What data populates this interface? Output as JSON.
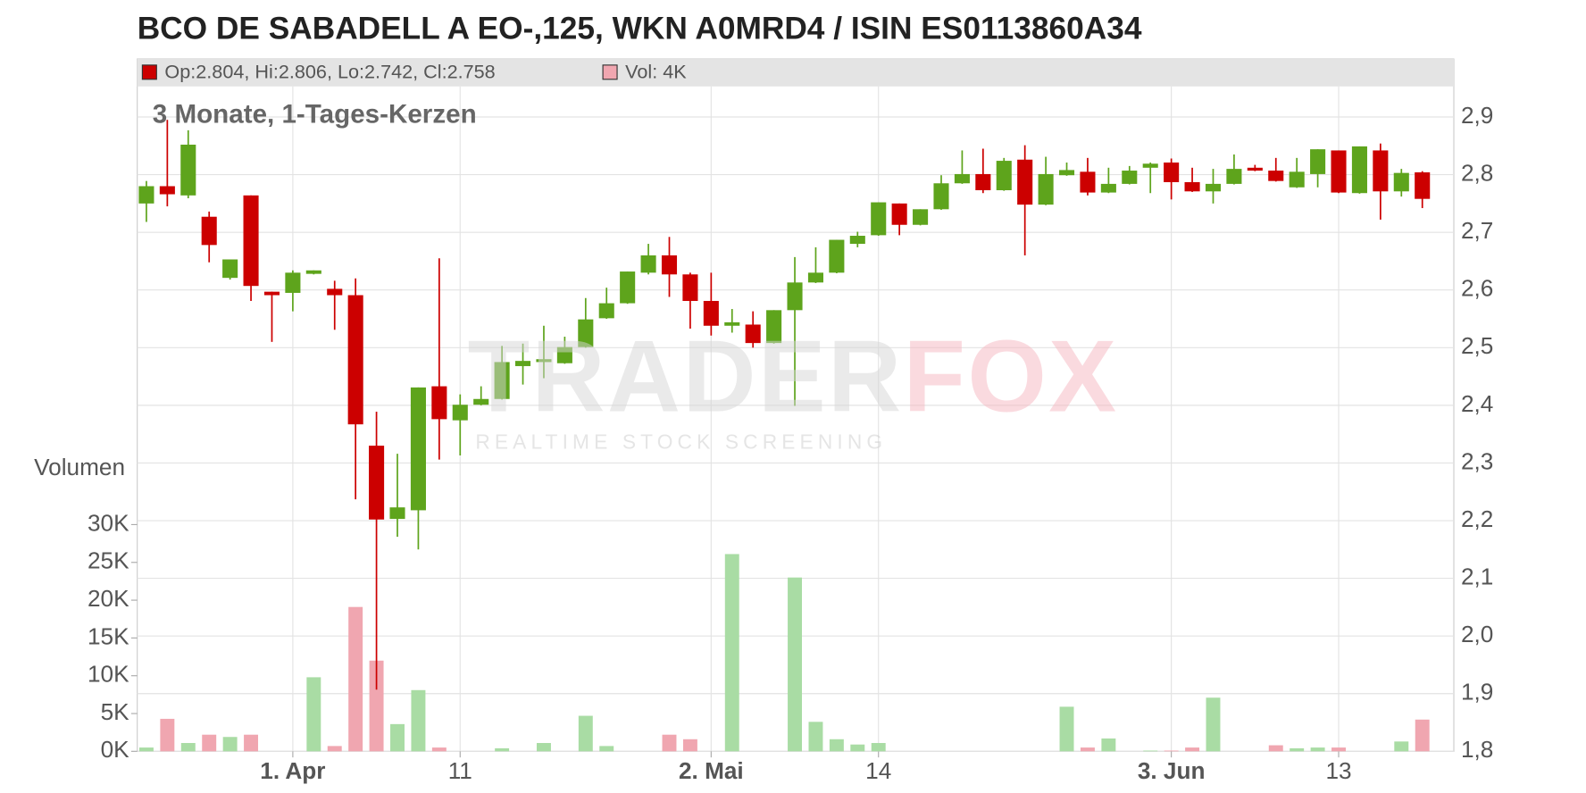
{
  "chart_data": {
    "type": "candlestick",
    "title": "BCO DE SABADELL A EO-,125, WKN A0MRD4 / ISIN ES0113860A34",
    "subtitle": "3 Monate, 1-Tages-Kerzen",
    "legend": {
      "price": "Op:2.804, Hi:2.806, Lo:2.742, Cl:2.758",
      "volume": "Vol: 4K"
    },
    "volume_axis_label": "Volumen",
    "watermark": {
      "left": "TRADER",
      "right": "FOX",
      "tagline": "REALTIME STOCK SCREENING"
    },
    "up_color": "#5ea41c",
    "down_color": "#cc0000",
    "volume_up_color": "#a9dca4",
    "volume_down_color": "#f0a6b0",
    "categories": [
      null,
      null,
      null,
      null,
      null,
      null,
      null,
      "1. Apr",
      null,
      null,
      null,
      null,
      null,
      null,
      null,
      "11",
      null,
      null,
      null,
      null,
      null,
      null,
      null,
      null,
      null,
      null,
      null,
      "2. Mai",
      null,
      null,
      null,
      null,
      null,
      null,
      null,
      "14",
      null,
      null,
      null,
      null,
      null,
      null,
      null,
      null,
      null,
      null,
      null,
      null,
      null,
      "3. Jun",
      null,
      null,
      null,
      null,
      null,
      null,
      null,
      "13",
      null,
      null,
      null,
      null
    ],
    "open": [
      2.75,
      2.78,
      2.764,
      2.727,
      2.621,
      2.764,
      2.597,
      2.595,
      2.628,
      2.602,
      2.591,
      2.33,
      2.203,
      2.218,
      2.433,
      2.374,
      2.401,
      2.411,
      2.468,
      2.475,
      2.473,
      2.501,
      2.551,
      2.577,
      2.63,
      2.66,
      2.627,
      2.581,
      2.538,
      2.54,
      2.508,
      2.565,
      2.613,
      2.63,
      2.68,
      2.695,
      2.75,
      2.713,
      2.74,
      2.785,
      2.801,
      2.773,
      2.826,
      2.748,
      2.799,
      2.805,
      2.769,
      2.784,
      2.812,
      2.821,
      2.787,
      2.771,
      2.784,
      2.812,
      2.807,
      2.778,
      2.801,
      2.842,
      2.768,
      2.842,
      2.771,
      2.804
    ],
    "high": [
      2.789,
      2.895,
      2.877,
      2.736,
      2.653,
      2.764,
      2.597,
      2.634,
      2.634,
      2.616,
      2.62,
      2.389,
      2.316,
      2.431,
      2.655,
      2.419,
      2.433,
      2.503,
      2.507,
      2.538,
      2.519,
      2.586,
      2.604,
      2.632,
      2.68,
      2.692,
      2.63,
      2.63,
      2.567,
      2.563,
      2.565,
      2.657,
      2.674,
      2.687,
      2.701,
      2.752,
      2.75,
      2.74,
      2.799,
      2.842,
      2.845,
      2.829,
      2.851,
      2.831,
      2.821,
      2.829,
      2.812,
      2.815,
      2.821,
      2.828,
      2.812,
      2.81,
      2.835,
      2.817,
      2.829,
      2.829,
      2.844,
      2.842,
      2.849,
      2.854,
      2.81,
      2.806
    ],
    "low": [
      2.718,
      2.745,
      2.759,
      2.648,
      2.618,
      2.581,
      2.51,
      2.563,
      2.627,
      2.531,
      2.237,
      1.907,
      2.172,
      2.15,
      2.306,
      2.313,
      2.4,
      2.41,
      2.436,
      2.447,
      2.472,
      2.5,
      2.55,
      2.576,
      2.627,
      2.588,
      2.533,
      2.521,
      2.526,
      2.5,
      2.507,
      2.399,
      2.612,
      2.629,
      2.674,
      2.694,
      2.695,
      2.712,
      2.739,
      2.784,
      2.768,
      2.772,
      2.66,
      2.747,
      2.798,
      2.764,
      2.768,
      2.783,
      2.768,
      2.757,
      2.77,
      2.75,
      2.783,
      2.806,
      2.788,
      2.777,
      2.778,
      2.768,
      2.767,
      2.722,
      2.762,
      2.742
    ],
    "close": [
      2.78,
      2.766,
      2.852,
      2.678,
      2.653,
      2.607,
      2.591,
      2.63,
      2.634,
      2.591,
      2.367,
      2.202,
      2.223,
      2.431,
      2.376,
      2.401,
      2.411,
      2.475,
      2.477,
      2.48,
      2.501,
      2.549,
      2.577,
      2.632,
      2.66,
      2.627,
      2.581,
      2.538,
      2.544,
      2.508,
      2.565,
      2.613,
      2.63,
      2.687,
      2.694,
      2.752,
      2.713,
      2.74,
      2.785,
      2.801,
      2.773,
      2.824,
      2.748,
      2.801,
      2.808,
      2.769,
      2.784,
      2.807,
      2.819,
      2.787,
      2.771,
      2.784,
      2.81,
      2.807,
      2.789,
      2.805,
      2.844,
      2.769,
      2.849,
      2.771,
      2.803,
      2.758
    ],
    "volume": [
      500,
      4300,
      1100,
      2200,
      1900,
      2200,
      0,
      0,
      9800,
      700,
      19100,
      12000,
      3600,
      8100,
      500,
      0,
      0,
      400,
      0,
      1100,
      0,
      4700,
      700,
      0,
      0,
      2200,
      1600,
      0,
      26100,
      0,
      0,
      23000,
      3900,
      1600,
      900,
      1100,
      0,
      0,
      0,
      0,
      0,
      0,
      0,
      0,
      5900,
      500,
      1700,
      0,
      100,
      100,
      500,
      7100,
      0,
      0,
      800,
      400,
      500,
      500,
      0,
      0,
      1300,
      4200
    ],
    "ylim": [
      1.8,
      2.953
    ],
    "yticks": [
      {
        "value": 1.8,
        "label": "1,8"
      },
      {
        "value": 1.9,
        "label": "1,9"
      },
      {
        "value": 2.0,
        "label": "2,0"
      },
      {
        "value": 2.1,
        "label": "2,1"
      },
      {
        "value": 2.2,
        "label": "2,2"
      },
      {
        "value": 2.3,
        "label": "2,3"
      },
      {
        "value": 2.4,
        "label": "2,4"
      },
      {
        "value": 2.5,
        "label": "2,5"
      },
      {
        "value": 2.6,
        "label": "2,6"
      },
      {
        "value": 2.7,
        "label": "2,7"
      },
      {
        "value": 2.8,
        "label": "2,8"
      },
      {
        "value": 2.9,
        "label": "2,9"
      }
    ],
    "y2lim": [
      0,
      30000
    ],
    "y2ticks": [
      {
        "value": 0,
        "label": "0K"
      },
      {
        "value": 5000,
        "label": "5K"
      },
      {
        "value": 10000,
        "label": "10K"
      },
      {
        "value": 15000,
        "label": "15K"
      },
      {
        "value": 20000,
        "label": "20K"
      },
      {
        "value": 25000,
        "label": "25K"
      },
      {
        "value": 30000,
        "label": "30K"
      }
    ],
    "grid": true
  }
}
